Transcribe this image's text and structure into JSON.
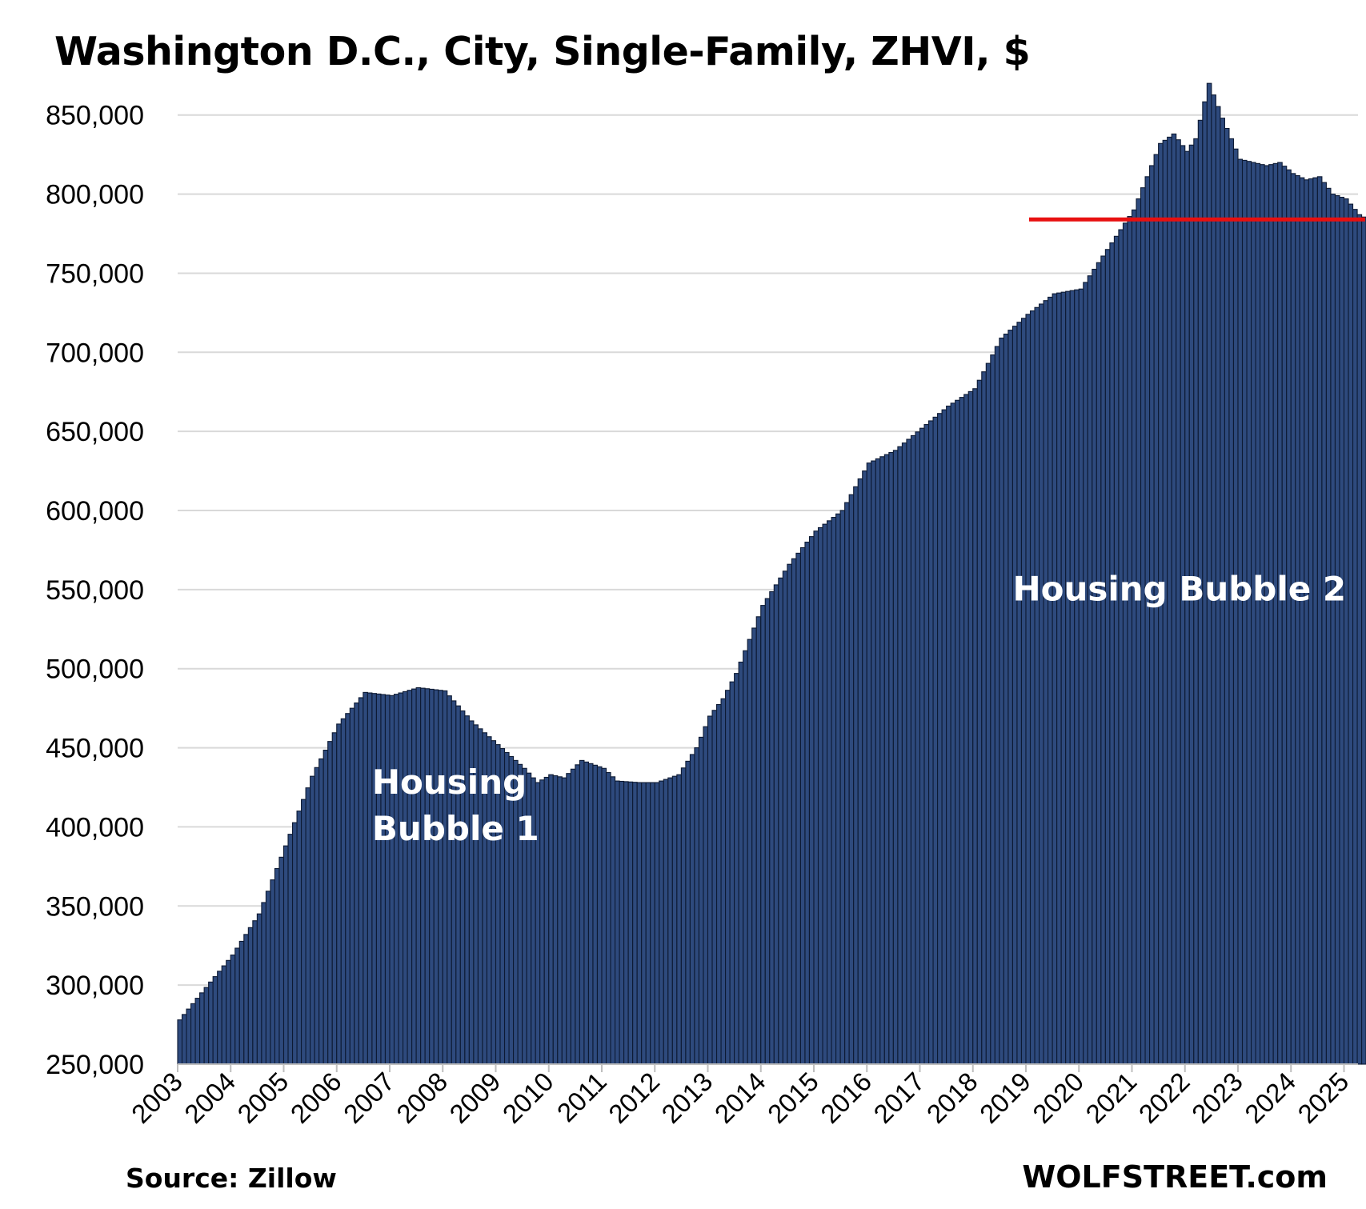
{
  "chart_data": {
    "type": "bar",
    "title": "Washington D.C., City, Single-Family, ZHVI, $",
    "xlabel": "",
    "ylabel": "",
    "x_tick_labels": [
      "2003",
      "2004",
      "2005",
      "2006",
      "2007",
      "2008",
      "2009",
      "2010",
      "2011",
      "2012",
      "2013",
      "2014",
      "2015",
      "2016",
      "2017",
      "2018",
      "2019",
      "2020",
      "2021",
      "2022",
      "2023",
      "2024",
      "2025"
    ],
    "y_tick_labels": [
      "250,000",
      "300,000",
      "350,000",
      "400,000",
      "450,000",
      "500,000",
      "550,000",
      "600,000",
      "650,000",
      "700,000",
      "750,000",
      "800,000",
      "850,000"
    ],
    "ylim": [
      250000,
      870000
    ],
    "x_start": "2003-01",
    "frequency": "monthly",
    "grid": true,
    "series": [
      {
        "color": "#2e4a7d",
        "edge_color": "#0d1a33",
        "anchors": [
          [
            "2003-01",
            278000
          ],
          [
            "2004-01",
            319000
          ],
          [
            "2004-07",
            345000
          ],
          [
            "2005-01",
            388000
          ],
          [
            "2005-07",
            432000
          ],
          [
            "2006-01",
            465000
          ],
          [
            "2006-07",
            485000
          ],
          [
            "2007-01",
            483000
          ],
          [
            "2007-07",
            488000
          ],
          [
            "2008-01",
            486000
          ],
          [
            "2008-07",
            467000
          ],
          [
            "2009-01",
            452000
          ],
          [
            "2009-07",
            437000
          ],
          [
            "2009-10",
            428000
          ],
          [
            "2010-01",
            433000
          ],
          [
            "2010-04",
            431000
          ],
          [
            "2010-08",
            442000
          ],
          [
            "2011-01",
            437000
          ],
          [
            "2011-04",
            429000
          ],
          [
            "2011-09",
            428000
          ],
          [
            "2012-01",
            428000
          ],
          [
            "2012-06",
            433000
          ],
          [
            "2012-10",
            450000
          ],
          [
            "2013-01",
            470000
          ],
          [
            "2013-04",
            481000
          ],
          [
            "2013-07",
            497000
          ],
          [
            "2014-01",
            540000
          ],
          [
            "2014-07",
            566000
          ],
          [
            "2015-01",
            587000
          ],
          [
            "2015-07",
            600000
          ],
          [
            "2016-01",
            630000
          ],
          [
            "2016-07",
            638000
          ],
          [
            "2017-01",
            652000
          ],
          [
            "2017-07",
            666000
          ],
          [
            "2018-01",
            677000
          ],
          [
            "2018-07",
            709000
          ],
          [
            "2019-01",
            724000
          ],
          [
            "2019-07",
            737000
          ],
          [
            "2020-01",
            740000
          ],
          [
            "2020-07",
            765000
          ],
          [
            "2021-01",
            790000
          ],
          [
            "2021-07",
            832000
          ],
          [
            "2021-10",
            838000
          ],
          [
            "2022-01",
            827000
          ],
          [
            "2022-03",
            835000
          ],
          [
            "2022-06",
            870000
          ],
          [
            "2022-09",
            848000
          ],
          [
            "2023-01",
            822000
          ],
          [
            "2023-07",
            818000
          ],
          [
            "2023-10",
            820000
          ],
          [
            "2024-01",
            813000
          ],
          [
            "2024-04",
            809000
          ],
          [
            "2024-07",
            811000
          ],
          [
            "2024-10",
            800000
          ],
          [
            "2025-01",
            797000
          ],
          [
            "2025-04",
            787000
          ],
          [
            "2025-06",
            784000
          ]
        ]
      }
    ],
    "reference_line": {
      "value": 784000,
      "from": "2019-01",
      "to": "2025-06",
      "color": "#e81010"
    },
    "annotations": [
      {
        "text": "Housing Bubble 1",
        "lines": [
          "Housing",
          "Bubble 1"
        ],
        "at": "2006-09",
        "value": 421000
      },
      {
        "text": "Housing Bubble 2",
        "lines": [
          "Housing Bubble 2"
        ],
        "at": "2018-10",
        "value": 543000
      }
    ],
    "gridline_color": "#d9d9d9"
  },
  "footer": {
    "source": "Source: Zillow",
    "brand": "WOLFSTREET.com"
  }
}
